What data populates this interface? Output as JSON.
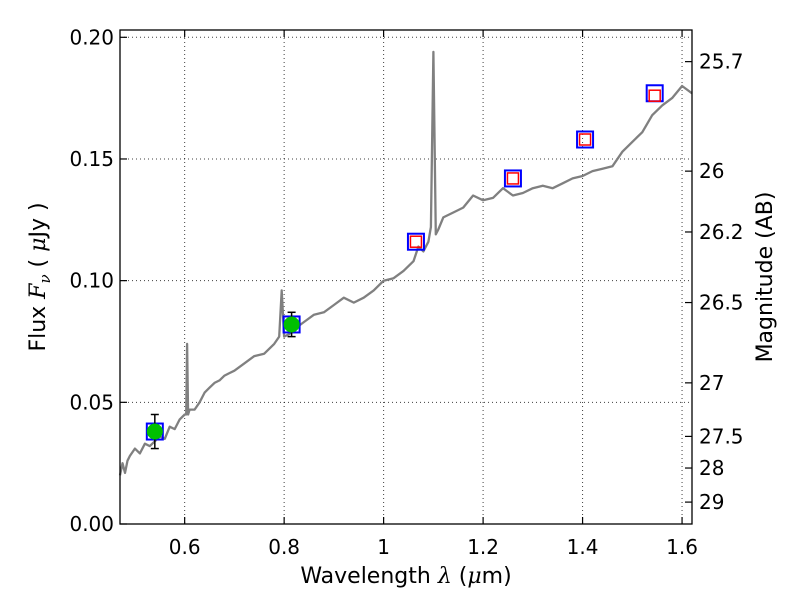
{
  "chart_data": {
    "type": "line",
    "title": "",
    "xlabel": {
      "prefix": "Wavelength",
      "symbol": "λ",
      "unit_open": " (",
      "unit_symbol": "μ",
      "unit_rest": "m)"
    },
    "ylabel": {
      "prefix": "Flux",
      "symbol": "F",
      "subscript": "ν",
      "unit_open": " ( ",
      "unit_symbol": "μ",
      "unit_rest": "Jy )"
    },
    "y2label": "Magnitude (AB)",
    "xlim": [
      0.47,
      1.62
    ],
    "ylim": [
      0.0,
      0.203
    ],
    "grid": true,
    "x_ticks": [
      {
        "value": 0.6,
        "label": "0.6"
      },
      {
        "value": 0.8,
        "label": "0.8"
      },
      {
        "value": 1.0,
        "label": "1"
      },
      {
        "value": 1.2,
        "label": "1.2"
      },
      {
        "value": 1.4,
        "label": "1.4"
      },
      {
        "value": 1.6,
        "label": "1.6"
      }
    ],
    "y_ticks": [
      {
        "value": 0.0,
        "label": "0.00"
      },
      {
        "value": 0.05,
        "label": "0.05"
      },
      {
        "value": 0.1,
        "label": "0.10"
      },
      {
        "value": 0.15,
        "label": "0.15"
      },
      {
        "value": 0.2,
        "label": "0.20"
      }
    ],
    "y2_ticks": [
      {
        "label": "25.7",
        "flux": 0.19
      },
      {
        "label": "26",
        "flux": 0.145
      },
      {
        "label": "26.2",
        "flux": 0.12
      },
      {
        "label": "26.5",
        "flux": 0.091
      },
      {
        "label": "27",
        "flux": 0.058
      },
      {
        "label": "27.5",
        "flux": 0.036
      },
      {
        "label": "28",
        "flux": 0.023
      },
      {
        "label": "29",
        "flux": 0.009
      }
    ],
    "colors": {
      "spectrum": "#808080",
      "model_box": "#0000ff",
      "inner_box": "#ff0000",
      "measured": "#00c000",
      "errorbar": "#000000"
    },
    "series": [
      {
        "kind": "spectrum",
        "x": [
          0.47,
          0.475,
          0.48,
          0.485,
          0.49,
          0.5,
          0.51,
          0.52,
          0.53,
          0.54,
          0.55,
          0.56,
          0.57,
          0.58,
          0.59,
          0.6,
          0.603,
          0.605,
          0.607,
          0.61,
          0.62,
          0.63,
          0.64,
          0.65,
          0.66,
          0.67,
          0.68,
          0.69,
          0.7,
          0.72,
          0.74,
          0.76,
          0.78,
          0.79,
          0.795,
          0.8,
          0.81,
          0.82,
          0.84,
          0.86,
          0.88,
          0.9,
          0.92,
          0.94,
          0.96,
          0.98,
          1.0,
          1.02,
          1.04,
          1.06,
          1.07,
          1.08,
          1.09,
          1.095,
          1.1,
          1.105,
          1.11,
          1.12,
          1.14,
          1.16,
          1.18,
          1.2,
          1.22,
          1.24,
          1.26,
          1.28,
          1.3,
          1.32,
          1.34,
          1.36,
          1.38,
          1.4,
          1.42,
          1.44,
          1.46,
          1.48,
          1.5,
          1.52,
          1.54,
          1.56,
          1.58,
          1.6,
          1.62
        ],
        "y": [
          0.02,
          0.025,
          0.021,
          0.026,
          0.028,
          0.031,
          0.029,
          0.033,
          0.032,
          0.034,
          0.036,
          0.035,
          0.04,
          0.039,
          0.043,
          0.045,
          0.045,
          0.074,
          0.045,
          0.047,
          0.047,
          0.05,
          0.054,
          0.056,
          0.058,
          0.059,
          0.061,
          0.062,
          0.063,
          0.066,
          0.069,
          0.07,
          0.074,
          0.077,
          0.096,
          0.077,
          0.078,
          0.08,
          0.083,
          0.086,
          0.087,
          0.09,
          0.093,
          0.091,
          0.093,
          0.096,
          0.1,
          0.101,
          0.104,
          0.108,
          0.114,
          0.112,
          0.116,
          0.122,
          0.194,
          0.119,
          0.121,
          0.126,
          0.128,
          0.13,
          0.135,
          0.133,
          0.134,
          0.138,
          0.135,
          0.136,
          0.138,
          0.139,
          0.138,
          0.14,
          0.142,
          0.143,
          0.145,
          0.146,
          0.147,
          0.153,
          0.157,
          0.161,
          0.168,
          0.172,
          0.175,
          0.18,
          0.177
        ]
      },
      {
        "kind": "model-photometry",
        "x": [
          0.54,
          0.815,
          1.065,
          1.26,
          1.405,
          1.545
        ],
        "y": [
          0.038,
          0.082,
          0.116,
          0.142,
          0.158,
          0.177
        ]
      },
      {
        "kind": "model-photometry-inner",
        "x": [
          1.065,
          1.26,
          1.405,
          1.545
        ],
        "y": [
          0.116,
          0.142,
          0.158,
          0.176
        ]
      },
      {
        "kind": "measured-photometry",
        "x": [
          0.54,
          0.815
        ],
        "y": [
          0.038,
          0.082
        ],
        "yerr": [
          0.007,
          0.005
        ]
      }
    ]
  }
}
